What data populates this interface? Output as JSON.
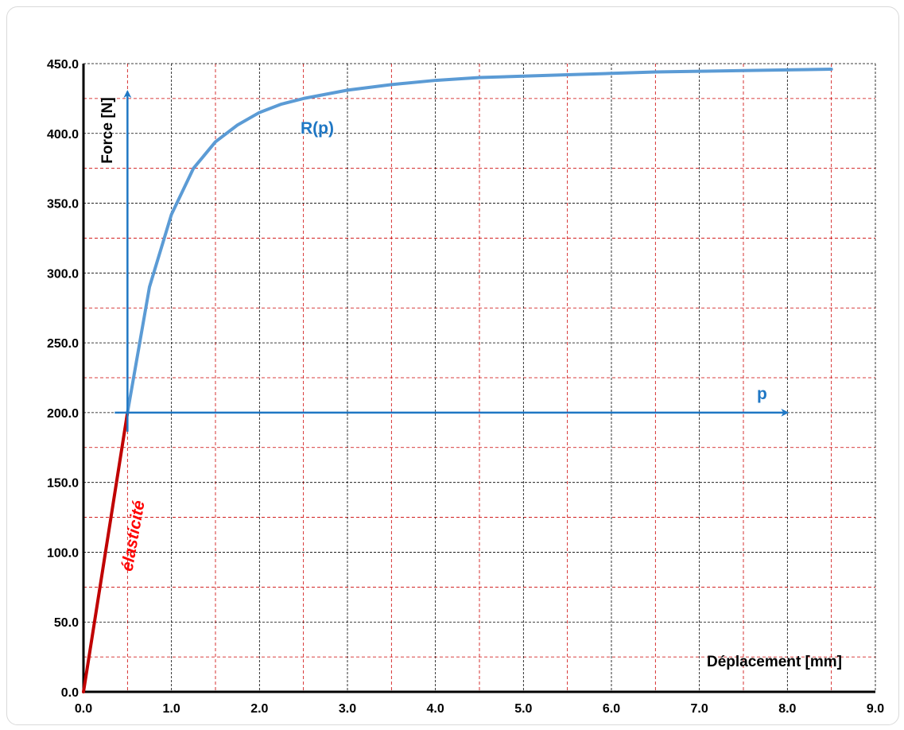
{
  "chart_data": {
    "type": "line",
    "xlabel": "Déplacement  [mm]",
    "ylabel": "Force [N]",
    "xlim": [
      0,
      9
    ],
    "ylim": [
      0,
      450
    ],
    "x_ticks": [
      "0.0",
      "1.0",
      "2.0",
      "3.0",
      "4.0",
      "5.0",
      "6.0",
      "7.0",
      "8.0",
      "9.0"
    ],
    "y_ticks": [
      "0.0",
      "50.0",
      "100.0",
      "150.0",
      "200.0",
      "250.0",
      "300.0",
      "350.0",
      "400.0",
      "450.0"
    ],
    "grid": {
      "major": true,
      "minor": true,
      "major_color": "#000000",
      "minor_color": "#cc0000"
    },
    "series": [
      {
        "color": "#c00000",
        "x": [
          0,
          0.5
        ],
        "y": [
          0,
          200
        ]
      },
      {
        "color": "#5b9bd5",
        "x": [
          0.5,
          0.75,
          1.0,
          1.25,
          1.5,
          1.75,
          2.0,
          2.25,
          2.5,
          2.75,
          3.0,
          3.5,
          4.0,
          4.5,
          5.0,
          5.5,
          6.0,
          6.5,
          7.0,
          7.5,
          8.0,
          8.5
        ],
        "y": [
          200,
          290,
          342,
          375,
          394,
          406,
          415,
          421,
          425,
          428,
          431,
          435,
          438,
          440,
          441,
          442,
          443,
          444,
          444.5,
          445,
          445.5,
          446
        ]
      }
    ],
    "annotations": {
      "elastic_label": "élasticité",
      "elastic_color": "#ff0000",
      "rp_label": "R(p)",
      "p_label": "p",
      "annotation_color": "#1f77c4",
      "local_axes_origin": [
        0.5,
        200
      ]
    }
  }
}
